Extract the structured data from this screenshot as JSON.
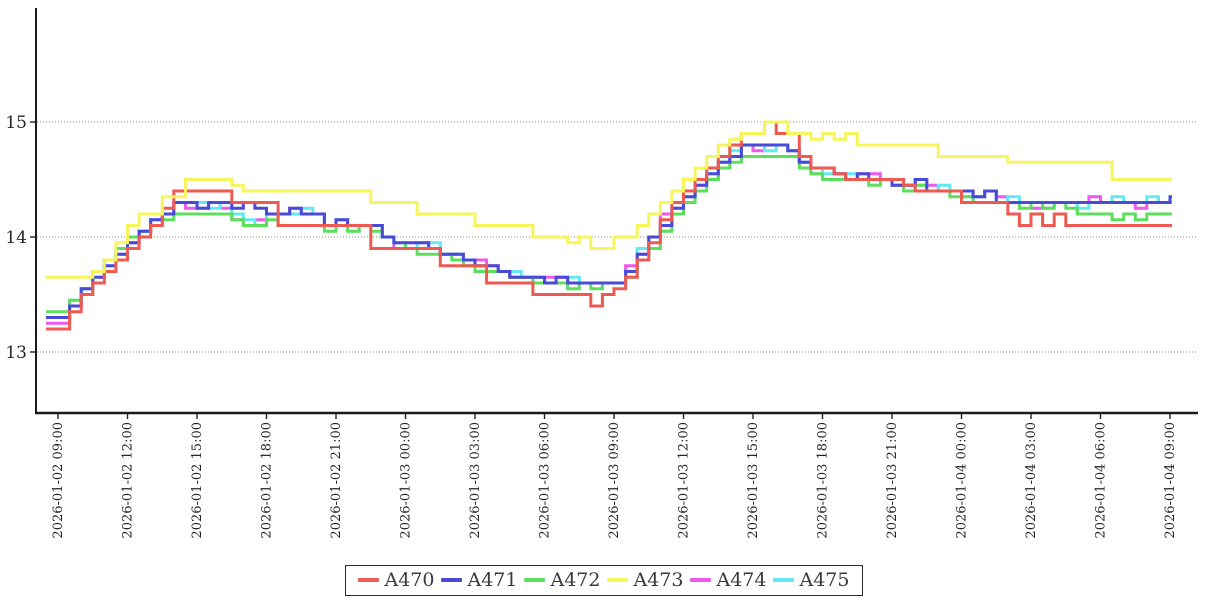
{
  "chart_data": {
    "type": "line",
    "step_style": true,
    "title": "",
    "xlabel": "",
    "ylabel": "",
    "grid": "horizontal-dotted",
    "yticks": [
      13,
      14,
      15
    ],
    "ylim": [
      12.45,
      15.95
    ],
    "x_tick_interval_hours": 3,
    "sample_step_hours": 0.5,
    "x_tick_labels": [
      "2026-01-02 09:00",
      "2026-01-02 12:00",
      "2026-01-02 15:00",
      "2026-01-02 18:00",
      "2026-01-02 21:00",
      "2026-01-03 00:00",
      "2026-01-03 03:00",
      "2026-01-03 06:00",
      "2026-01-03 09:00",
      "2026-01-03 12:00",
      "2026-01-03 15:00",
      "2026-01-03 18:00",
      "2026-01-03 21:00",
      "2026-01-04 00:00",
      "2026-01-04 03:00",
      "2026-01-04 06:00",
      "2026-01-04 09:00"
    ],
    "legend_position": "bottom-center",
    "draw_order": [
      "A474",
      "A475",
      "A472",
      "A471",
      "A470",
      "A473"
    ],
    "series": [
      {
        "name": "A470",
        "color": "#ee5a52",
        "values": [
          13.2,
          13.35,
          13.5,
          13.6,
          13.7,
          13.8,
          13.9,
          14.0,
          14.1,
          14.25,
          14.4,
          14.4,
          14.4,
          14.4,
          14.4,
          14.3,
          14.3,
          14.3,
          14.3,
          14.1,
          14.1,
          14.1,
          14.1,
          14.1,
          14.1,
          14.1,
          14.1,
          13.9,
          13.9,
          13.9,
          13.9,
          13.9,
          13.9,
          13.75,
          13.75,
          13.75,
          13.75,
          13.6,
          13.6,
          13.6,
          13.6,
          13.5,
          13.5,
          13.5,
          13.5,
          13.5,
          13.4,
          13.5,
          13.55,
          13.65,
          13.8,
          13.95,
          14.15,
          14.3,
          14.4,
          14.5,
          14.6,
          14.7,
          14.8,
          14.9,
          14.9,
          15.0,
          14.9,
          14.9,
          14.7,
          14.6,
          14.6,
          14.55,
          14.5,
          14.5,
          14.5,
          14.5,
          14.5,
          14.45,
          14.4,
          14.4,
          14.4,
          14.4,
          14.3,
          14.3,
          14.3,
          14.3,
          14.2,
          14.1,
          14.2,
          14.1,
          14.2,
          14.1,
          14.1,
          14.1,
          14.1,
          14.1,
          14.1,
          14.1,
          14.1,
          14.1,
          14.1
        ]
      },
      {
        "name": "A471",
        "color": "#4a4ad8",
        "values": [
          13.3,
          13.4,
          13.55,
          13.65,
          13.75,
          13.85,
          13.95,
          14.05,
          14.15,
          14.2,
          14.3,
          14.3,
          14.25,
          14.3,
          14.3,
          14.25,
          14.3,
          14.25,
          14.2,
          14.2,
          14.25,
          14.2,
          14.2,
          14.1,
          14.15,
          14.1,
          14.1,
          14.1,
          14.0,
          13.95,
          13.95,
          13.95,
          13.9,
          13.85,
          13.85,
          13.8,
          13.75,
          13.75,
          13.7,
          13.65,
          13.65,
          13.65,
          13.6,
          13.65,
          13.6,
          13.6,
          13.6,
          13.6,
          13.6,
          13.7,
          13.85,
          14.0,
          14.1,
          14.25,
          14.35,
          14.45,
          14.55,
          14.65,
          14.7,
          14.8,
          14.8,
          14.8,
          14.8,
          14.75,
          14.65,
          14.6,
          14.6,
          14.55,
          14.5,
          14.55,
          14.5,
          14.5,
          14.45,
          14.45,
          14.5,
          14.4,
          14.4,
          14.4,
          14.4,
          14.35,
          14.4,
          14.3,
          14.3,
          14.3,
          14.3,
          14.3,
          14.3,
          14.3,
          14.3,
          14.3,
          14.3,
          14.3,
          14.3,
          14.3,
          14.3,
          14.3,
          14.35
        ]
      },
      {
        "name": "A472",
        "color": "#5dde5d",
        "values": [
          13.35,
          13.45,
          13.55,
          13.7,
          13.8,
          13.9,
          14.0,
          14.05,
          14.1,
          14.15,
          14.2,
          14.2,
          14.2,
          14.2,
          14.2,
          14.15,
          14.1,
          14.1,
          14.15,
          14.1,
          14.1,
          14.1,
          14.1,
          14.05,
          14.1,
          14.05,
          14.1,
          14.05,
          14.0,
          13.95,
          13.9,
          13.85,
          13.85,
          13.85,
          13.8,
          13.75,
          13.7,
          13.7,
          13.7,
          13.65,
          13.65,
          13.6,
          13.6,
          13.6,
          13.55,
          13.6,
          13.55,
          13.6,
          13.6,
          13.65,
          13.8,
          13.9,
          14.05,
          14.2,
          14.3,
          14.4,
          14.5,
          14.6,
          14.65,
          14.7,
          14.7,
          14.7,
          14.7,
          14.7,
          14.6,
          14.55,
          14.5,
          14.5,
          14.5,
          14.5,
          14.45,
          14.5,
          14.45,
          14.4,
          14.45,
          14.4,
          14.4,
          14.35,
          14.35,
          14.3,
          14.3,
          14.3,
          14.3,
          14.25,
          14.3,
          14.25,
          14.3,
          14.25,
          14.2,
          14.2,
          14.2,
          14.15,
          14.2,
          14.15,
          14.2,
          14.2,
          14.2
        ]
      },
      {
        "name": "A473",
        "color": "#f6f65c",
        "values": [
          13.65,
          13.65,
          13.65,
          13.7,
          13.8,
          13.95,
          14.1,
          14.2,
          14.2,
          14.35,
          14.35,
          14.5,
          14.5,
          14.5,
          14.5,
          14.45,
          14.4,
          14.4,
          14.4,
          14.4,
          14.4,
          14.4,
          14.4,
          14.4,
          14.4,
          14.4,
          14.4,
          14.3,
          14.3,
          14.3,
          14.3,
          14.2,
          14.2,
          14.2,
          14.2,
          14.2,
          14.1,
          14.1,
          14.1,
          14.1,
          14.1,
          14.0,
          14.0,
          14.0,
          13.95,
          14.0,
          13.9,
          13.9,
          14.0,
          14.0,
          14.1,
          14.2,
          14.3,
          14.4,
          14.5,
          14.6,
          14.7,
          14.8,
          14.85,
          14.9,
          14.9,
          15.0,
          15.0,
          14.9,
          14.9,
          14.85,
          14.9,
          14.85,
          14.9,
          14.8,
          14.8,
          14.8,
          14.8,
          14.8,
          14.8,
          14.8,
          14.7,
          14.7,
          14.7,
          14.7,
          14.7,
          14.7,
          14.65,
          14.65,
          14.65,
          14.65,
          14.65,
          14.65,
          14.65,
          14.65,
          14.65,
          14.5,
          14.5,
          14.5,
          14.5,
          14.5,
          14.5
        ]
      },
      {
        "name": "A474",
        "color": "#ec59ec",
        "values": [
          13.25,
          13.4,
          13.55,
          13.7,
          13.8,
          13.85,
          13.95,
          14.05,
          14.15,
          14.2,
          14.3,
          14.25,
          14.25,
          14.3,
          14.25,
          14.15,
          14.1,
          14.15,
          14.2,
          14.2,
          14.25,
          14.2,
          14.2,
          14.1,
          14.15,
          14.1,
          14.1,
          14.1,
          14.0,
          13.9,
          13.95,
          13.95,
          13.9,
          13.85,
          13.85,
          13.8,
          13.8,
          13.75,
          13.7,
          13.65,
          13.65,
          13.65,
          13.65,
          13.65,
          13.6,
          13.6,
          13.6,
          13.6,
          13.6,
          13.75,
          13.85,
          14.0,
          14.2,
          14.25,
          14.35,
          14.45,
          14.5,
          14.65,
          14.7,
          14.8,
          14.75,
          14.8,
          14.8,
          14.75,
          14.65,
          14.55,
          14.6,
          14.55,
          14.5,
          14.55,
          14.55,
          14.5,
          14.45,
          14.45,
          14.5,
          14.45,
          14.4,
          14.4,
          14.4,
          14.35,
          14.4,
          14.35,
          14.3,
          14.3,
          14.25,
          14.3,
          14.3,
          14.3,
          14.3,
          14.35,
          14.3,
          14.3,
          14.3,
          14.25,
          14.3,
          14.3,
          14.3
        ]
      },
      {
        "name": "A475",
        "color": "#63e9f2",
        "values": [
          13.3,
          13.45,
          13.5,
          13.65,
          13.75,
          13.85,
          14.0,
          14.05,
          14.15,
          14.2,
          14.3,
          14.3,
          14.3,
          14.25,
          14.3,
          14.2,
          14.15,
          14.1,
          14.2,
          14.2,
          14.2,
          14.25,
          14.2,
          14.1,
          14.15,
          14.05,
          14.1,
          14.1,
          14.0,
          13.95,
          13.9,
          13.95,
          13.95,
          13.85,
          13.85,
          13.8,
          13.75,
          13.7,
          13.7,
          13.7,
          13.65,
          13.65,
          13.6,
          13.6,
          13.65,
          13.6,
          13.6,
          13.6,
          13.6,
          13.7,
          13.9,
          14.0,
          14.1,
          14.3,
          14.35,
          14.5,
          14.55,
          14.65,
          14.75,
          14.8,
          14.8,
          14.75,
          14.8,
          14.75,
          14.65,
          14.6,
          14.55,
          14.55,
          14.55,
          14.5,
          14.5,
          14.5,
          14.5,
          14.45,
          14.45,
          14.4,
          14.45,
          14.4,
          14.35,
          14.35,
          14.4,
          14.3,
          14.35,
          14.3,
          14.3,
          14.25,
          14.3,
          14.3,
          14.25,
          14.3,
          14.3,
          14.35,
          14.3,
          14.3,
          14.35,
          14.3,
          14.3
        ]
      }
    ]
  }
}
